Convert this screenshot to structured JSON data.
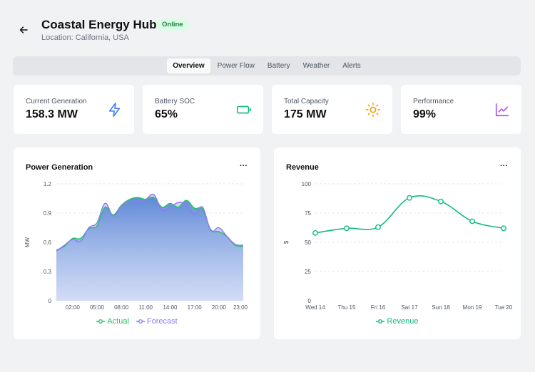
{
  "header": {
    "title": "Coastal Energy Hub",
    "status": "Online",
    "location": "Location: California, USA"
  },
  "tabs": [
    {
      "label": "Overview",
      "active": true
    },
    {
      "label": "Power Flow",
      "active": false
    },
    {
      "label": "Battery",
      "active": false
    },
    {
      "label": "Weather",
      "active": false
    },
    {
      "label": "Alerts",
      "active": false
    }
  ],
  "stats": [
    {
      "label": "Current Generation",
      "value": "158.3 MW",
      "icon": "lightning-icon",
      "color": "#3b82f6"
    },
    {
      "label": "Battery SOC",
      "value": "65%",
      "icon": "battery-icon",
      "color": "#10b981"
    },
    {
      "label": "Total Capacity",
      "value": "175 MW",
      "icon": "sun-icon",
      "color": "#f59e0b"
    },
    {
      "label": "Performance",
      "value": "99%",
      "icon": "chart-line-icon",
      "color": "#a855f7"
    }
  ],
  "panels": {
    "power": {
      "title": "Power Generation",
      "menu": "···"
    },
    "revenue": {
      "title": "Revenue",
      "menu": "···"
    }
  },
  "chart_data": [
    {
      "type": "area",
      "title": "Power Generation",
      "xlabel": "",
      "ylabel": "MW",
      "ylim": [
        0,
        1.2
      ],
      "yticks": [
        "0",
        "0.3",
        "0.6",
        "0.9",
        "1.2"
      ],
      "xticks": [
        "02:00",
        "05:00",
        "08:00",
        "11:00",
        "14:00",
        "17:00",
        "20:00",
        "23:00"
      ],
      "x": [
        0,
        1,
        2,
        3,
        4,
        5,
        6,
        7,
        8,
        9,
        10,
        11,
        12,
        13,
        14,
        15,
        16,
        17,
        18,
        19,
        20,
        21,
        22,
        23
      ],
      "series": [
        {
          "name": "Actual",
          "color": "#22c55e",
          "values": [
            0.52,
            0.56,
            0.64,
            0.64,
            0.74,
            0.77,
            0.96,
            0.88,
            0.98,
            1.04,
            1.06,
            1.04,
            1.06,
            0.96,
            1.0,
            0.96,
            1.03,
            0.95,
            0.94,
            0.73,
            0.71,
            0.66,
            0.57,
            0.56
          ]
        },
        {
          "name": "Forecast",
          "color": "#8b7cf6",
          "values": [
            0.51,
            0.57,
            0.63,
            0.61,
            0.75,
            0.8,
            1.0,
            0.87,
            0.97,
            1.02,
            1.01,
            1.04,
            1.09,
            0.93,
            0.96,
            1.01,
            0.99,
            0.89,
            0.96,
            0.72,
            0.75,
            0.66,
            0.58,
            0.57
          ]
        }
      ],
      "grid": true,
      "legend": "bottom"
    },
    {
      "type": "line",
      "title": "Revenue",
      "xlabel": "",
      "ylabel": "$",
      "ylim": [
        0,
        100
      ],
      "yticks": [
        "0",
        "25",
        "50",
        "75",
        "100"
      ],
      "categories": [
        "Wed 14",
        "Thu 15",
        "Fri 16",
        "Sat 17",
        "Sun 18",
        "Mon 19",
        "Tue 20"
      ],
      "series": [
        {
          "name": "Revenue",
          "color": "#10b981",
          "values": [
            58,
            62,
            63,
            88,
            85,
            68,
            62
          ]
        }
      ],
      "grid": true,
      "legend": "bottom"
    }
  ]
}
